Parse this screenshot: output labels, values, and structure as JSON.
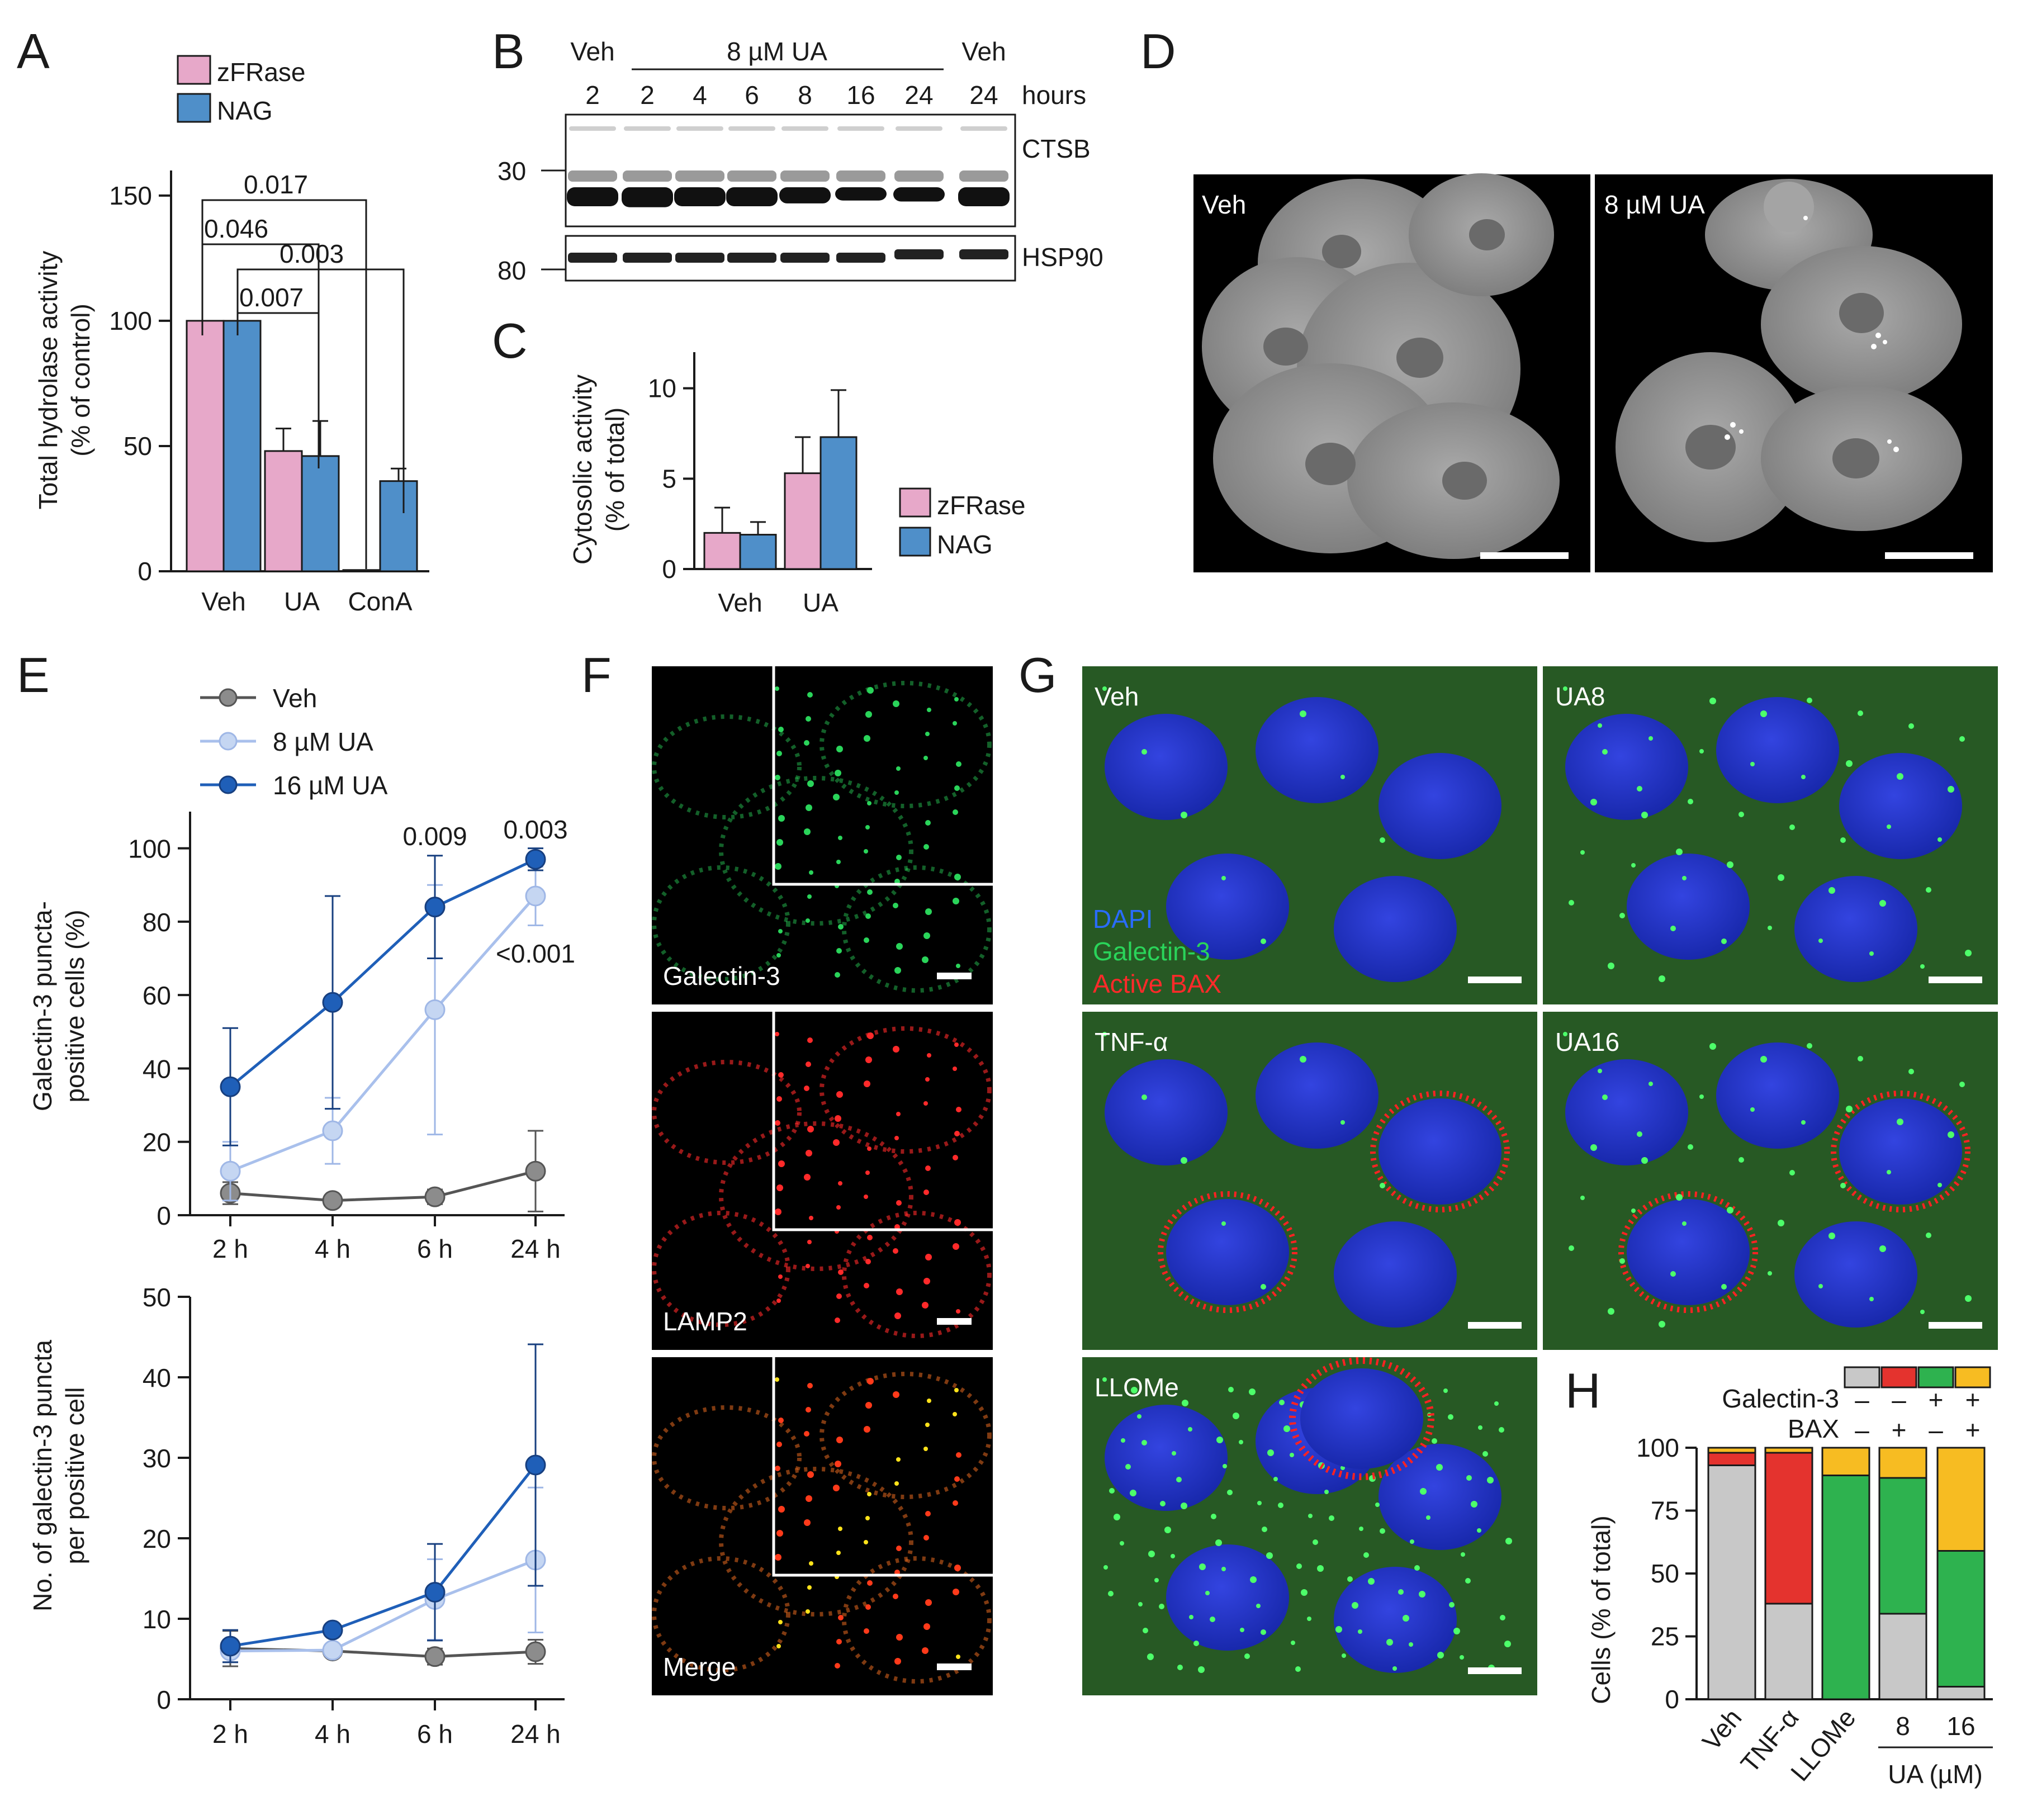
{
  "panels": {
    "A": {
      "letter": "A",
      "legend": [
        "zFRase",
        "NAG"
      ],
      "ylabel_line1": "Total hydrolase activity",
      "ylabel_line2": "(% of control)",
      "yticks": [
        "0",
        "50",
        "100",
        "150"
      ],
      "pvals": [
        "0.017",
        "0.046",
        "0.003",
        "0.007"
      ]
    },
    "B": {
      "letter": "B",
      "header_veh_left": "Veh",
      "header_ua": "8 µM UA",
      "header_veh_right": "Veh",
      "lanes": [
        "2",
        "2",
        "4",
        "6",
        "8",
        "16",
        "24",
        "24"
      ],
      "hours": "hours",
      "mw_upper": "30",
      "mw_lower": "80",
      "band_upper": "CTSB",
      "band_lower": "HSP90"
    },
    "C": {
      "letter": "C",
      "ylabel_line1": "Cytosolic activity",
      "ylabel_line2": "(% of  total)",
      "yticks": [
        "0",
        "5",
        "10"
      ],
      "legend": [
        "zFRase",
        "NAG"
      ]
    },
    "D": {
      "letter": "D",
      "left_label": "Veh",
      "right_label": "8 µM UA"
    },
    "E": {
      "letter": "E",
      "legend": [
        "Veh",
        "8 µM UA",
        "16 µM UA"
      ],
      "top_ylabel_line1": "Galectin-3 puncta-",
      "top_ylabel_line2": "positive cells (%)",
      "top_yticks": [
        "0",
        "20",
        "40",
        "60",
        "80",
        "100"
      ],
      "top_pvals": [
        "0.009",
        "0.003",
        "<0.001"
      ],
      "bottom_ylabel_line1": "No. of galectin-3 puncta",
      "bottom_ylabel_line2": "per positive cell",
      "bottom_yticks": [
        "0",
        "10",
        "20",
        "30",
        "40",
        "50"
      ],
      "xticks": [
        "2 h",
        "4 h",
        "6 h",
        "24 h"
      ]
    },
    "F": {
      "letter": "F",
      "labels": [
        "Galectin-3",
        "LAMP2",
        "Merge"
      ]
    },
    "G": {
      "letter": "G",
      "labels": [
        "Veh",
        "UA8",
        "TNF-α",
        "UA16",
        "LLOMe"
      ],
      "stain_legend": [
        "DAPI",
        "Galectin-3",
        "Active BAX"
      ]
    },
    "H": {
      "letter": "H",
      "row_galectin": "Galectin-3",
      "row_bax": "BAX",
      "galectin_signs": [
        "–",
        "–",
        "+",
        "+"
      ],
      "bax_signs": [
        "–",
        "+",
        "–",
        "+"
      ],
      "ylabel": "Cells (% of total)",
      "yticks": [
        "0",
        "25",
        "50",
        "75",
        "100"
      ],
      "categories": [
        "Veh",
        "TNF-α",
        "LLOMe",
        "8",
        "16"
      ],
      "ua_label": "UA (µM)"
    }
  },
  "colors": {
    "pink": "#e7a8c9",
    "blue": "#4f8fc9",
    "veh_gray": "#8c8c8c",
    "ua8_light": "#c5d6f2",
    "ua16_dark": "#1f5fb8",
    "h_gray": "#c8c8c8",
    "h_red": "#e4332e",
    "h_green": "#2eb24f",
    "h_yellow": "#f7bc22"
  },
  "chart_data": [
    {
      "panel": "A",
      "type": "bar",
      "categories": [
        "Veh",
        "UA",
        "ConA"
      ],
      "series": [
        {
          "name": "zFRase",
          "values": [
            100,
            48,
            0.5
          ],
          "errors": [
            0,
            9,
            0
          ]
        },
        {
          "name": "NAG",
          "values": [
            100,
            46,
            36
          ],
          "errors": [
            0,
            14,
            5
          ]
        }
      ],
      "ylim": [
        0,
        160
      ]
    },
    {
      "panel": "C",
      "type": "bar",
      "categories": [
        "Veh",
        "UA"
      ],
      "series": [
        {
          "name": "zFRase",
          "values": [
            2.0,
            5.3
          ],
          "errors": [
            1.4,
            2.0
          ]
        },
        {
          "name": "NAG",
          "values": [
            1.9,
            7.3
          ],
          "errors": [
            0.7,
            2.6
          ]
        }
      ],
      "ylim": [
        0,
        12
      ]
    },
    {
      "panel": "E-top",
      "type": "line",
      "x": [
        "2 h",
        "4 h",
        "6 h",
        "24 h"
      ],
      "series": [
        {
          "name": "Veh",
          "values": [
            6,
            4,
            5,
            12
          ],
          "errors": [
            3,
            1,
            2,
            11
          ]
        },
        {
          "name": "8 µM UA",
          "values": [
            12,
            23,
            56,
            87
          ],
          "errors": [
            8,
            9,
            34,
            8
          ]
        },
        {
          "name": "16 µM UA",
          "values": [
            35,
            58,
            84,
            97
          ],
          "errors": [
            16,
            29,
            14,
            3
          ]
        }
      ],
      "ylim": [
        0,
        110
      ]
    },
    {
      "panel": "E-bottom",
      "type": "line",
      "x": [
        "2 h",
        "4 h",
        "6 h",
        "24 h"
      ],
      "series": [
        {
          "name": "Veh",
          "values": [
            6.3,
            6.0,
            5.3,
            5.9
          ],
          "errors": [
            2.2,
            0.6,
            1.0,
            1.5
          ]
        },
        {
          "name": "8 µM UA",
          "values": [
            6.0,
            6.1,
            12.4,
            17.3
          ],
          "errors": [
            1.4,
            0.6,
            5.0,
            9.0
          ]
        },
        {
          "name": "16 µM UA",
          "values": [
            6.6,
            8.6,
            13.3,
            29.1
          ],
          "errors": [
            2.0,
            0.5,
            6.0,
            15.0
          ]
        }
      ],
      "ylim": [
        0,
        50
      ]
    },
    {
      "panel": "H",
      "type": "bar",
      "stacked": true,
      "categories": [
        "Veh",
        "TNF-α",
        "LLOMe",
        "8",
        "16"
      ],
      "series": [
        {
          "name": "– –",
          "color": "#c8c8c8",
          "values": [
            93,
            38,
            0,
            34,
            5
          ]
        },
        {
          "name": "– +",
          "color": "#e4332e",
          "values": [
            5,
            60,
            0,
            0,
            0
          ]
        },
        {
          "name": "+ –",
          "color": "#2eb24f",
          "values": [
            0,
            0,
            89,
            54,
            54
          ]
        },
        {
          "name": "+ +",
          "color": "#f7bc22",
          "values": [
            2,
            2,
            11,
            12,
            41
          ]
        }
      ],
      "ylim": [
        0,
        100
      ]
    }
  ]
}
